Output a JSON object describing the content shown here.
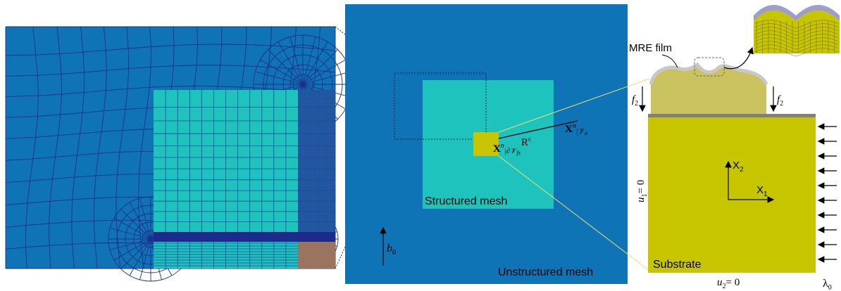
{
  "middle_panel": {
    "structured_label": "Structured mesh",
    "unstructured_label": "Unstructured mesh",
    "point_inner": "X",
    "point_inner_sup": "n",
    "point_inner_sub": "|∂𝒱",
    "point_inner_subsub": "fs",
    "point_outer": "X",
    "point_outer_sup": "n",
    "point_outer_sub": "|𝒱",
    "point_outer_subsub": "a",
    "radius": "R",
    "radius_sup": "c",
    "force": "b",
    "force_sub": "0"
  },
  "right_panel": {
    "film_label": "MRE film",
    "substrate_label": "Substrate",
    "f_left": "f",
    "f_left_sub": "2",
    "f_right": "f",
    "f_right_sub": "2",
    "axis_x2": "X",
    "axis_x2_sub": "2",
    "axis_x1": "X",
    "axis_x1_sub": "1",
    "bc_left": "u",
    "bc_left_sub": "1",
    "bc_left_eq": "= 0",
    "bc_bottom": "u",
    "bc_bottom_sub": "2",
    "bc_bottom_eq": "= 0",
    "lambda": "λ",
    "lambda_sub": "0"
  },
  "colors": {
    "mesh_blue": "#0f74b6",
    "mesh_line": "#1d2f8a",
    "structured": "#1fc3bd",
    "substrate": "#c7c400",
    "film": "#c9c25f",
    "coating": "#c8c8c8"
  }
}
